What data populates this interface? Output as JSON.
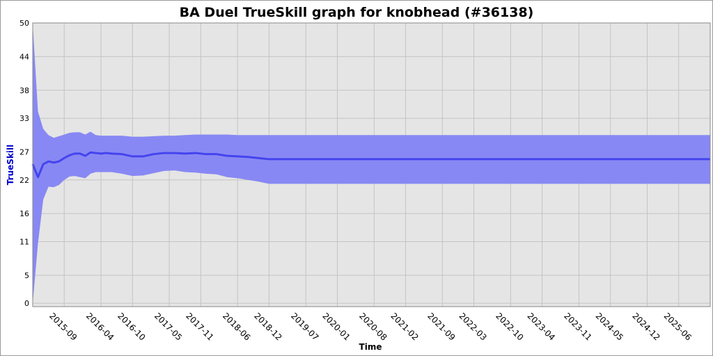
{
  "chart_data": {
    "type": "line",
    "title": "BA Duel TrueSkill graph for knobhead (#36138)",
    "xlabel": "Time",
    "ylabel": "TrueSkill",
    "x": [
      "2015-03",
      "2015-04",
      "2015-05",
      "2015-06",
      "2015-07",
      "2015-08",
      "2015-09",
      "2015-10",
      "2015-11",
      "2015-12",
      "2016-01",
      "2016-02",
      "2016-03",
      "2016-04",
      "2016-05",
      "2016-06",
      "2016-08",
      "2016-10",
      "2016-12",
      "2017-02",
      "2017-04",
      "2017-06",
      "2017-08",
      "2017-10",
      "2017-12",
      "2018-02",
      "2018-04",
      "2018-06",
      "2018-08",
      "2018-10",
      "2018-12",
      "2025-12"
    ],
    "series": [
      {
        "color": "#4444ee",
        "values": [
          24.8,
          22.5,
          24.8,
          25.3,
          25.1,
          25.3,
          25.9,
          26.4,
          26.7,
          26.7,
          26.3,
          26.9,
          26.8,
          26.7,
          26.8,
          26.7,
          26.6,
          26.2,
          26.2,
          26.6,
          26.8,
          26.8,
          26.7,
          26.8,
          26.6,
          26.6,
          26.3,
          26.2,
          26.1,
          25.9,
          25.7,
          25.7
        ]
      }
    ],
    "band": {
      "color": "#8888f4",
      "upper": [
        49.8,
        34.2,
        31.1,
        30.0,
        29.5,
        29.8,
        30.1,
        30.4,
        30.5,
        30.5,
        30.1,
        30.6,
        30.0,
        29.9,
        29.9,
        29.9,
        29.9,
        29.7,
        29.7,
        29.8,
        29.9,
        29.9,
        30.0,
        30.1,
        30.1,
        30.1,
        30.1,
        30.0,
        30.0,
        30.0,
        30.0,
        30.0
      ],
      "lower": [
        0,
        10.7,
        18.5,
        20.8,
        20.7,
        21.1,
        22.0,
        22.6,
        22.7,
        22.5,
        22.3,
        23.1,
        23.4,
        23.4,
        23.4,
        23.4,
        23.1,
        22.7,
        22.8,
        23.2,
        23.6,
        23.7,
        23.4,
        23.3,
        23.1,
        23.0,
        22.5,
        22.3,
        22.0,
        21.7,
        21.3,
        21.3
      ]
    },
    "xlim": [
      "2015-03",
      "2025-12"
    ],
    "xticks": [
      "2015-09",
      "2016-04",
      "2016-10",
      "2017-05",
      "2017-11",
      "2018-06",
      "2018-12",
      "2019-07",
      "2020-01",
      "2020-08",
      "2021-02",
      "2021-09",
      "2022-03",
      "2022-10",
      "2023-04",
      "2023-11",
      "2024-05",
      "2024-12",
      "2025-06"
    ],
    "ylim": [
      -0.6,
      50
    ],
    "yticks": [
      0,
      5,
      11,
      16,
      22,
      27,
      33,
      38,
      44,
      50
    ],
    "grid": true
  }
}
